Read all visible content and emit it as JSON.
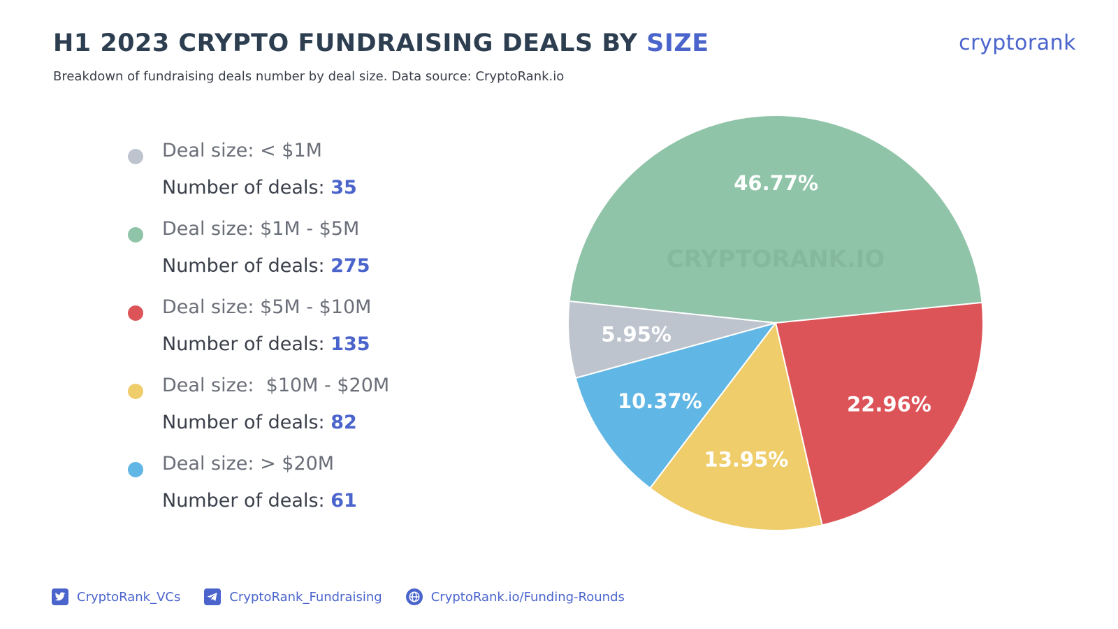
{
  "header": {
    "title_main": "H1 2023 CRYPTO FUNDRAISING DEALS BY ",
    "title_accent": "SIZE",
    "subtitle": "Breakdown of fundraising deals number by deal size. Data source: CryptoRank.io",
    "logo": "cryptorank"
  },
  "legend": {
    "items": [
      {
        "size_label": "Deal size: < $1M",
        "count_label": "Number of deals: ",
        "count": "35",
        "color": "#bec4ce"
      },
      {
        "size_label": "Deal size: $1M - $5M",
        "count_label": "Number of deals: ",
        "count": "275",
        "color": "#8fc4a8"
      },
      {
        "size_label": "Deal size: $5M - $10M",
        "count_label": "Number of deals: ",
        "count": "135",
        "color": "#dc5458"
      },
      {
        "size_label": "Deal size:  $10M - $20M",
        "count_label": "Number of deals: ",
        "count": "82",
        "color": "#efcd6b"
      },
      {
        "size_label": "Deal size: > $20M",
        "count_label": "Number of deals: ",
        "count": "61",
        "color": "#60b6e4"
      }
    ]
  },
  "chart_data": {
    "type": "pie",
    "title": "H1 2023 CRYPTO FUNDRAISING DEALS BY SIZE",
    "watermark": "CRYPTORANK.IO",
    "slices": [
      {
        "label": "Deal size: $1M - $5M",
        "value": 46.77,
        "label_text": "46.77%",
        "count": 275,
        "color": "#8fc4a8"
      },
      {
        "label": "Deal size: $5M - $10M",
        "value": 22.96,
        "label_text": "22.96%",
        "count": 135,
        "color": "#dc5458"
      },
      {
        "label": "Deal size:  $10M - $20M",
        "value": 13.95,
        "label_text": "13.95%",
        "count": 82,
        "color": "#efcd6b"
      },
      {
        "label": "Deal size: > $20M",
        "value": 10.37,
        "label_text": "10.37%",
        "count": 61,
        "color": "#60b6e4"
      },
      {
        "label": "Deal size: < $1M",
        "value": 5.95,
        "label_text": "5.95%",
        "count": 35,
        "color": "#bec4ce"
      }
    ]
  },
  "footer": {
    "links": [
      {
        "text": "CryptoRank_VCs",
        "icon": "twitter-icon"
      },
      {
        "text": "CryptoRank_Fundraising",
        "icon": "telegram-icon"
      },
      {
        "text": "CryptoRank.io/Funding-Rounds",
        "icon": "globe-icon"
      }
    ]
  }
}
